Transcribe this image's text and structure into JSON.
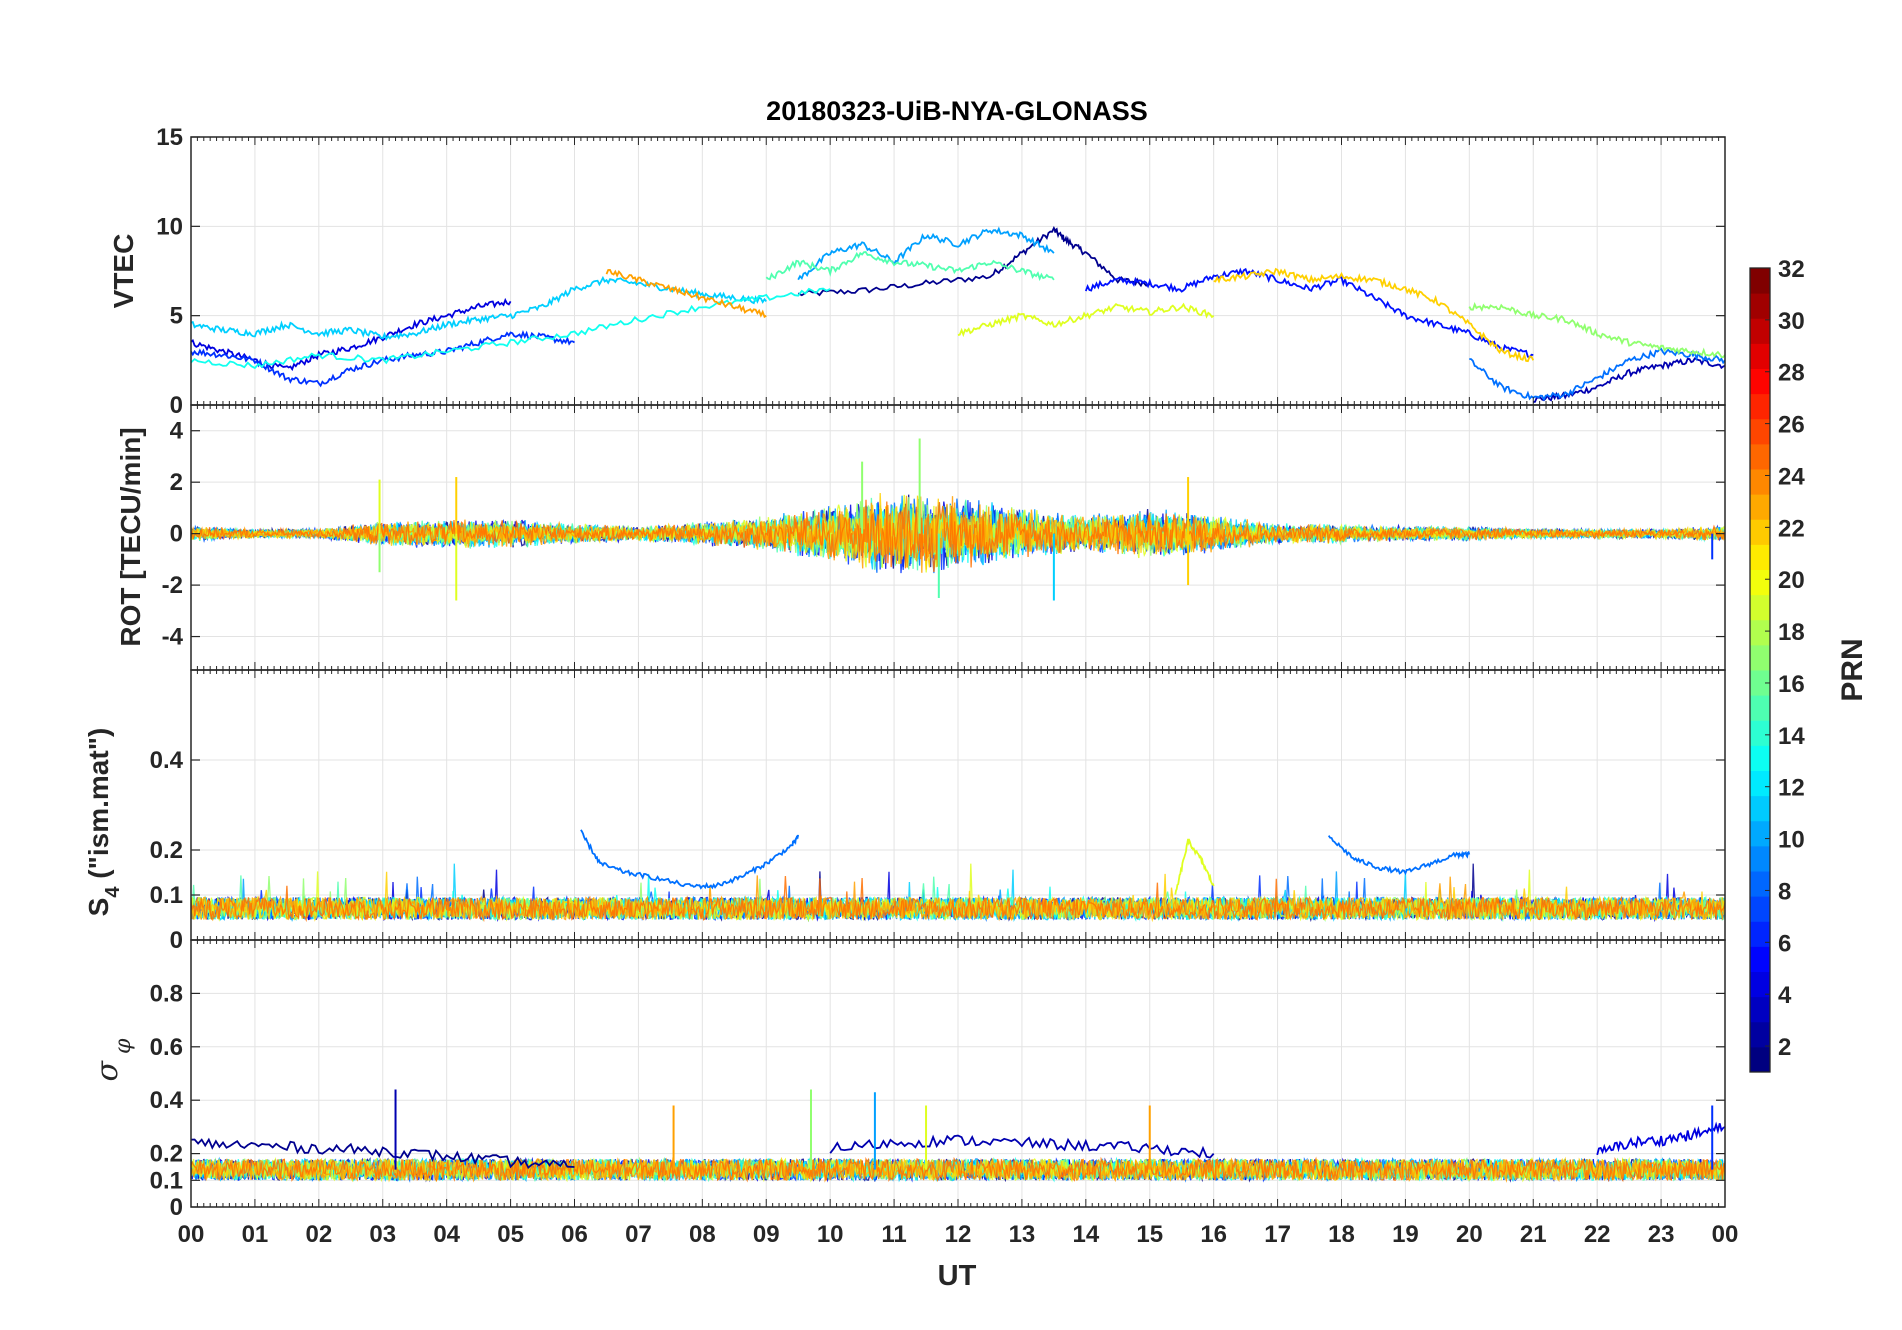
{
  "title": "20180323-UiB-NYA-GLONASS",
  "xlabel": "UT",
  "x_tick_labels": [
    "00",
    "01",
    "02",
    "03",
    "04",
    "05",
    "06",
    "07",
    "08",
    "09",
    "10",
    "11",
    "12",
    "13",
    "14",
    "15",
    "16",
    "17",
    "18",
    "19",
    "20",
    "21",
    "22",
    "23",
    "00"
  ],
  "colorbar": {
    "label": "PRN",
    "range": [
      1,
      32
    ],
    "ticks": [
      2,
      4,
      6,
      8,
      10,
      12,
      14,
      16,
      18,
      20,
      22,
      24,
      26,
      28,
      30,
      32
    ],
    "colormap": "jet",
    "bands": 32
  },
  "chart_data": [
    {
      "type": "line",
      "panel": "VTEC",
      "ylabel": "VTEC",
      "ylim": [
        0,
        15
      ],
      "yticks": [
        0,
        5,
        10,
        15
      ],
      "xlim": [
        0,
        24
      ],
      "grid": true,
      "series": [
        {
          "prn": 1,
          "color": "#00008f",
          "x": [
            9.5,
            10.5,
            11.5,
            12.5,
            13,
            13.5,
            13.7,
            14,
            14.5,
            15
          ],
          "y": [
            6.2,
            6.4,
            6.8,
            7.2,
            8.5,
            9.8,
            9.2,
            8.5,
            7.0,
            6.8
          ]
        },
        {
          "prn": 2,
          "color": "#0000b0",
          "x": [
            21,
            21.5,
            22,
            22.5,
            23,
            23.5,
            24
          ],
          "y": [
            0.3,
            0.5,
            1.0,
            1.8,
            2.2,
            2.5,
            2.2
          ]
        },
        {
          "prn": 3,
          "color": "#0000df",
          "x": [
            0,
            0.5,
            1,
            1.5,
            2,
            2.5,
            3,
            3.5,
            4,
            4.5,
            5
          ],
          "y": [
            3.5,
            3.0,
            2.5,
            2.0,
            2.8,
            3.2,
            3.8,
            4.5,
            5.0,
            5.5,
            5.8
          ]
        },
        {
          "prn": 4,
          "color": "#0010ff",
          "x": [
            14,
            14.5,
            15,
            15.5,
            16,
            16.5,
            17,
            17.5,
            18,
            18.5,
            19,
            19.5,
            20,
            20.5,
            21
          ],
          "y": [
            6.5,
            7.0,
            6.8,
            6.5,
            7.2,
            7.5,
            7.0,
            6.5,
            7.0,
            6.0,
            5.0,
            4.5,
            4.0,
            3.2,
            2.8
          ]
        },
        {
          "prn": 5,
          "color": "#0030ff",
          "x": [
            0,
            0.5,
            1,
            1.5,
            2,
            2.5,
            3,
            3.5,
            4,
            4.5,
            5,
            5.5,
            6
          ],
          "y": [
            3.0,
            2.8,
            2.5,
            1.5,
            1.2,
            2.0,
            2.5,
            2.8,
            3.0,
            3.5,
            4.0,
            3.8,
            3.5
          ]
        },
        {
          "prn": 7,
          "color": "#0070ff",
          "x": [
            20,
            20.5,
            21,
            21.5,
            22,
            22.5,
            23,
            23.5,
            24
          ],
          "y": [
            2.5,
            1.0,
            0.4,
            0.6,
            1.5,
            2.5,
            3.0,
            2.8,
            2.5
          ]
        },
        {
          "prn": 9,
          "color": "#00a0ff",
          "x": [
            9.5,
            10,
            10.5,
            11,
            11.5,
            12,
            12.5,
            13,
            13.5
          ],
          "y": [
            7.0,
            8.5,
            9.0,
            8.0,
            9.5,
            9.0,
            9.8,
            9.5,
            8.5
          ]
        },
        {
          "prn": 11,
          "color": "#00cfff",
          "x": [
            0,
            0.5,
            1,
            1.5,
            2,
            2.5,
            3,
            3.5,
            4,
            4.5,
            5,
            5.5,
            6,
            6.5,
            7,
            7.5,
            8,
            8.5,
            9
          ],
          "y": [
            4.5,
            4.2,
            4.0,
            4.5,
            4.0,
            4.2,
            3.8,
            4.0,
            4.5,
            4.8,
            5.0,
            5.5,
            6.5,
            7.0,
            6.8,
            6.5,
            6.2,
            6.0,
            5.8
          ]
        },
        {
          "prn": 13,
          "color": "#10ffef",
          "x": [
            0,
            1,
            2,
            3,
            4,
            5,
            6,
            7,
            8,
            9,
            10
          ],
          "y": [
            2.5,
            2.2,
            2.8,
            2.5,
            3.0,
            3.5,
            4.0,
            4.8,
            5.5,
            6.0,
            6.5
          ]
        },
        {
          "prn": 15,
          "color": "#50ffaf",
          "x": [
            9,
            9.5,
            10,
            10.5,
            11,
            11.5,
            12,
            12.5,
            13,
            13.5
          ],
          "y": [
            7.0,
            8.0,
            7.5,
            8.5,
            8.0,
            7.8,
            7.5,
            8.0,
            7.5,
            7.0
          ]
        },
        {
          "prn": 17,
          "color": "#90ff6f",
          "x": [
            20,
            20.5,
            21,
            21.5,
            22,
            22.5,
            23,
            23.5,
            24
          ],
          "y": [
            5.5,
            5.5,
            5.0,
            4.8,
            4.0,
            3.5,
            3.2,
            3.0,
            2.8
          ]
        },
        {
          "prn": 19,
          "color": "#dfff20",
          "x": [
            12,
            12.5,
            13,
            13.5,
            14,
            14.5,
            15,
            15.5,
            16
          ],
          "y": [
            4.0,
            4.5,
            5.0,
            4.5,
            5.0,
            5.5,
            5.2,
            5.5,
            5.0
          ]
        },
        {
          "prn": 21,
          "color": "#ffd000",
          "x": [
            16,
            16.5,
            17,
            17.5,
            18,
            18.5,
            19,
            19.5,
            20,
            20.5,
            21
          ],
          "y": [
            7.0,
            7.2,
            7.5,
            7.0,
            7.2,
            7.0,
            6.5,
            5.8,
            4.5,
            3.0,
            2.5
          ]
        },
        {
          "prn": 23,
          "color": "#ffa000",
          "x": [
            6.5,
            7,
            7.5,
            8,
            8.5,
            9
          ],
          "y": [
            7.5,
            7.0,
            6.5,
            6.0,
            5.5,
            5.0
          ]
        }
      ]
    },
    {
      "type": "line",
      "panel": "ROT",
      "ylabel": "ROT [TECU/min]",
      "ylim": [
        -5.3,
        5
      ],
      "yticks": [
        -4,
        -2,
        0,
        2,
        4
      ],
      "xlim": [
        0,
        24
      ],
      "grid": true,
      "envelope": {
        "x": [
          0,
          1,
          2,
          3,
          4,
          5,
          6,
          7,
          8,
          9,
          10,
          11,
          12,
          13,
          14,
          15,
          16,
          17,
          18,
          19,
          20,
          21,
          22,
          23,
          24
        ],
        "amplitude": [
          0.3,
          0.2,
          0.2,
          0.5,
          0.6,
          0.6,
          0.4,
          0.3,
          0.5,
          0.7,
          1.2,
          1.7,
          1.5,
          1.0,
          0.8,
          1.0,
          0.8,
          0.4,
          0.4,
          0.3,
          0.3,
          0.2,
          0.2,
          0.2,
          0.3
        ]
      },
      "spikes": [
        {
          "x": 2.95,
          "y": 2.1,
          "color": "#dfff20"
        },
        {
          "x": 2.95,
          "y": -1.5,
          "color": "#90ff6f"
        },
        {
          "x": 4.15,
          "y": 2.2,
          "color": "#ffd000"
        },
        {
          "x": 4.15,
          "y": -2.6,
          "color": "#dfff20"
        },
        {
          "x": 10.5,
          "y": 2.8,
          "color": "#90ff6f"
        },
        {
          "x": 11.4,
          "y": 3.7,
          "color": "#90ff6f"
        },
        {
          "x": 11.7,
          "y": -2.5,
          "color": "#50ffaf"
        },
        {
          "x": 13.5,
          "y": -2.6,
          "color": "#00cfff"
        },
        {
          "x": 15.6,
          "y": 2.2,
          "color": "#ffd000"
        },
        {
          "x": 15.6,
          "y": -2.0,
          "color": "#ffd000"
        },
        {
          "x": 23.8,
          "y": -1.0,
          "color": "#0030ff"
        }
      ]
    },
    {
      "type": "line",
      "panel": "S4",
      "ylabel": "S_4 (\"ism.mat\")",
      "ylim": [
        0,
        0.6
      ],
      "yticks": [
        0,
        0.1,
        0.2,
        0.4
      ],
      "xlim": [
        0,
        24
      ],
      "grid": true,
      "baseline": 0.06,
      "series": [
        {
          "prn": 7,
          "color": "#0070ff",
          "x": [
            6.1,
            6.4,
            6.8,
            7.2,
            7.8,
            8.2,
            8.6,
            9.0,
            9.4,
            9.5
          ],
          "y": [
            0.24,
            0.17,
            0.15,
            0.14,
            0.12,
            0.12,
            0.14,
            0.17,
            0.21,
            0.23
          ]
        },
        {
          "prn": 7,
          "color": "#0070ff",
          "x": [
            17.8,
            18.2,
            18.6,
            19.0,
            19.4,
            19.8,
            20.0
          ],
          "y": [
            0.23,
            0.18,
            0.16,
            0.15,
            0.17,
            0.19,
            0.19
          ]
        },
        {
          "prn": 19,
          "color": "#dfff20",
          "x": [
            15.4,
            15.6,
            15.8,
            16.0
          ],
          "y": [
            0.1,
            0.22,
            0.18,
            0.12
          ]
        }
      ]
    },
    {
      "type": "line",
      "panel": "sigma_phi",
      "ylabel": "σ_φ",
      "ylim": [
        0,
        1
      ],
      "yticks": [
        0,
        0.1,
        0.2,
        0.4,
        0.6,
        0.8
      ],
      "xlim": [
        0,
        24
      ],
      "grid": true,
      "baseline": 0.14,
      "series": [
        {
          "prn": 1,
          "color": "#00008f",
          "x": [
            0,
            1,
            2,
            3,
            4,
            5,
            6
          ],
          "y": [
            0.24,
            0.23,
            0.22,
            0.21,
            0.19,
            0.17,
            0.15
          ]
        },
        {
          "prn": 2,
          "color": "#0000b0",
          "x": [
            10,
            11,
            12,
            13,
            14,
            15,
            16
          ],
          "y": [
            0.22,
            0.24,
            0.25,
            0.24,
            0.23,
            0.22,
            0.2
          ]
        },
        {
          "prn": 3,
          "color": "#0000df",
          "x": [
            22,
            22.5,
            23,
            23.5,
            24
          ],
          "y": [
            0.2,
            0.24,
            0.25,
            0.27,
            0.3
          ]
        }
      ],
      "spikes": [
        {
          "x": 3.2,
          "y": 0.44,
          "color": "#0000b0"
        },
        {
          "x": 7.55,
          "y": 0.38,
          "color": "#ffa000"
        },
        {
          "x": 9.7,
          "y": 0.44,
          "color": "#90ff6f"
        },
        {
          "x": 10.7,
          "y": 0.43,
          "color": "#00a0ff"
        },
        {
          "x": 11.5,
          "y": 0.38,
          "color": "#dfff20"
        },
        {
          "x": 15.0,
          "y": 0.38,
          "color": "#ffa000"
        },
        {
          "x": 23.8,
          "y": 0.38,
          "color": "#0030ff"
        }
      ]
    }
  ]
}
